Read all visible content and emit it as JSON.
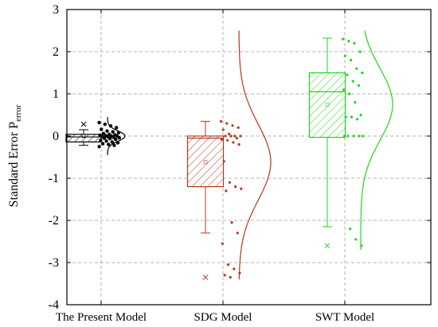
{
  "chart_data": {
    "type": "box",
    "ylabel_main": "Standard Error P",
    "ylabel_sub": "error",
    "ylim": [
      -4,
      3
    ],
    "yticks": [
      3,
      2,
      1,
      0,
      -1,
      -2,
      -3,
      -4
    ],
    "grid": true,
    "categories": [
      "The Present Model",
      "SDG Model",
      "SWT Model"
    ],
    "series": [
      {
        "color": "#000000",
        "box": {
          "q1": -0.14,
          "median": -0.02,
          "q3": 0.04,
          "whisker_low": -0.22,
          "whisker_high": 0.15,
          "mean": 0.0
        },
        "outliers": [
          0.28
        ],
        "points": [
          0.32,
          0.28,
          0.24,
          0.2,
          0.16,
          0.12,
          0.1,
          0.08,
          0.06,
          0.04,
          0.03,
          0.02,
          0.01,
          0.0,
          0.0,
          -0.01,
          -0.02,
          -0.03,
          -0.04,
          -0.05,
          -0.06,
          -0.08,
          -0.1,
          -0.12,
          -0.14,
          -0.16,
          -0.18,
          -0.2,
          -0.22,
          -0.25
        ],
        "density": {
          "ymin": -0.45,
          "ymax": 0.45,
          "sigma": 0.12
        }
      },
      {
        "color": "#b5371e",
        "box": {
          "q1": -1.2,
          "median": -0.05,
          "q3": 0.0,
          "whisker_low": -2.3,
          "whisker_high": 0.35,
          "mean": -0.62
        },
        "outliers": [
          -3.35
        ],
        "points": [
          0.35,
          0.3,
          0.25,
          0.2,
          0.15,
          0.05,
          0.0,
          0.0,
          0.0,
          0.0,
          -0.05,
          -0.08,
          -0.1,
          -0.15,
          -0.2,
          -0.6,
          -1.1,
          -1.2,
          -1.25,
          -1.3,
          -2.05,
          -2.3,
          -2.55,
          -3.05,
          -3.15,
          -3.25,
          -3.3,
          -3.35
        ],
        "density": {
          "ymin": -3.4,
          "ymax": 2.5,
          "sigma": 0.9
        }
      },
      {
        "color": "#1ed61e",
        "box": {
          "q1": -0.03,
          "median": 1.05,
          "q3": 1.5,
          "whisker_low": -2.15,
          "whisker_high": 2.32,
          "mean": 0.75
        },
        "outliers": [
          -2.6
        ],
        "points": [
          2.3,
          2.25,
          2.2,
          2.0,
          1.9,
          1.8,
          1.6,
          1.5,
          1.45,
          1.3,
          1.2,
          1.1,
          1.0,
          0.8,
          0.5,
          0.45,
          0.45,
          0.4,
          0.0,
          0.0,
          0.0,
          0.0,
          0.0,
          -2.2,
          -2.45,
          -2.6
        ],
        "density": {
          "ymin": -2.7,
          "ymax": 2.5,
          "sigma": 0.85
        }
      }
    ]
  }
}
